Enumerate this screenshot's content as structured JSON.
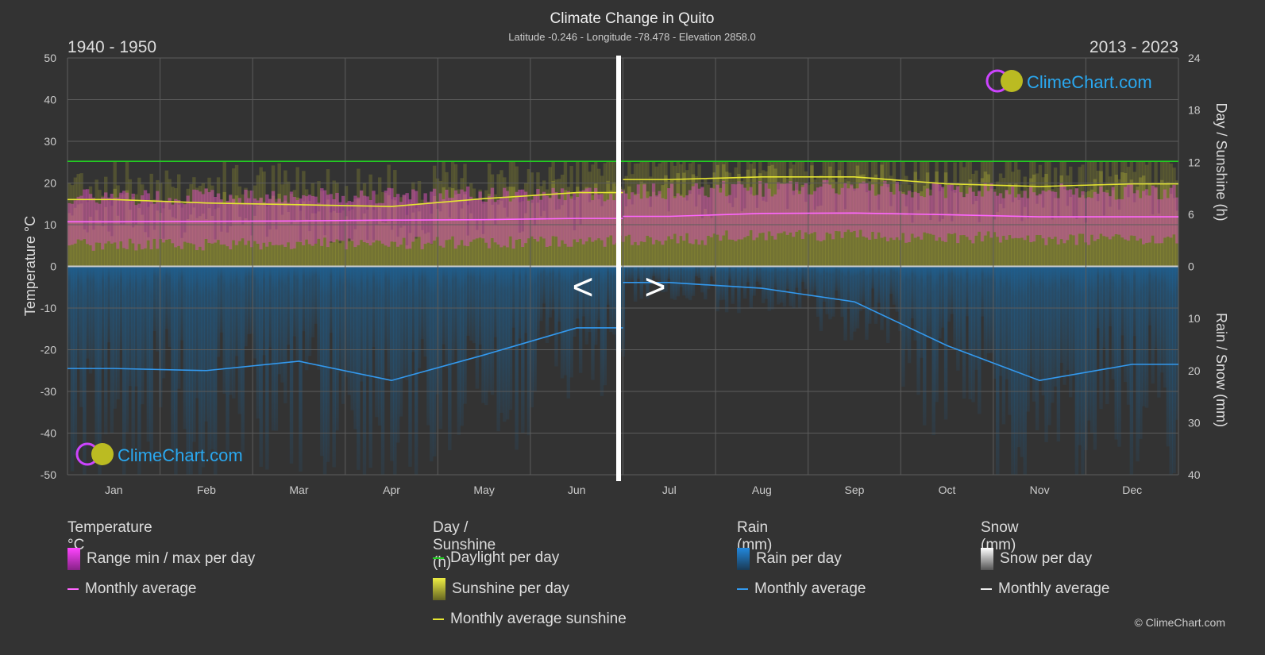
{
  "header": {
    "title": "Climate Change in Quito",
    "subtitle": "Latitude -0.246 - Longitude -78.478 - Elevation 2858.0",
    "period_left": "1940 - 1950",
    "period_right": "2013 - 2023",
    "nav_prev": "<",
    "nav_next": ">"
  },
  "chart_data": {
    "type": "line",
    "title": "Climate Change in Quito",
    "categories": [
      "Jan",
      "Feb",
      "Mar",
      "Apr",
      "May",
      "Jun",
      "Jul",
      "Aug",
      "Sep",
      "Oct",
      "Nov",
      "Dec"
    ],
    "left_axis": {
      "label": "Temperature °C",
      "range": [
        -50,
        50
      ],
      "ticks": [
        "50",
        "40",
        "30",
        "20",
        "10",
        "0",
        "-10",
        "-20",
        "-30",
        "-40",
        "-50"
      ]
    },
    "right_axis_top": {
      "label": "Day / Sunshine (h)",
      "range": [
        0,
        24
      ],
      "ticks": [
        "24",
        "18",
        "12",
        "6",
        "0"
      ]
    },
    "right_axis_bottom": {
      "label": "Rain / Snow (mm)",
      "range": [
        0,
        40
      ],
      "ticks": [
        "0",
        "10",
        "20",
        "30",
        "40"
      ]
    },
    "grid": true,
    "note": "Jan–Jun from 1940 - 1950, Jul–Dec from 2013 - 2023",
    "series": [
      {
        "name": "Monthly average",
        "group": "temperature",
        "unit": "°C",
        "color": "#ff66ff",
        "values": [
          10.7,
          10.8,
          10.9,
          11.1,
          11.2,
          11.5,
          12.0,
          12.7,
          12.8,
          12.4,
          11.9,
          11.9
        ]
      },
      {
        "name": "Daylight per day",
        "group": "sunshine",
        "unit": "h",
        "color": "#22cc22",
        "values": [
          12.1,
          12.1,
          12.1,
          12.1,
          12.1,
          12.1,
          12.1,
          12.1,
          12.1,
          12.1,
          12.1,
          12.1
        ]
      },
      {
        "name": "Monthly average sunshine",
        "group": "sunshine",
        "unit": "h",
        "color": "#e6e632",
        "values": [
          7.7,
          7.3,
          7.1,
          6.9,
          7.8,
          8.5,
          10.0,
          10.3,
          10.3,
          9.5,
          9.2,
          9.5
        ]
      },
      {
        "name": "Monthly average",
        "group": "rain",
        "unit": "mm",
        "color": "#3399ee",
        "values": [
          19.6,
          20.0,
          18.2,
          21.9,
          17.0,
          11.8,
          3.1,
          4.2,
          6.8,
          15.2,
          21.9,
          18.8
        ]
      }
    ]
  },
  "legend": {
    "temperature": {
      "title": "Temperature °C",
      "range": "Range min / max per day",
      "avg": "Monthly average"
    },
    "sunshine": {
      "title": "Day / Sunshine (h)",
      "daylight": "Daylight per day",
      "sunshine": "Sunshine per day",
      "avg": "Monthly average sunshine"
    },
    "rain": {
      "title": "Rain (mm)",
      "per_day": "Rain per day",
      "avg": "Monthly average"
    },
    "snow": {
      "title": "Snow (mm)",
      "per_day": "Snow per day",
      "avg": "Monthly average"
    }
  },
  "brand": {
    "logo_text": "ClimeChart.com",
    "copyright": "© ClimeChart.com"
  },
  "colors": {
    "background": "#333333",
    "temp_range": "#e040c0",
    "sunshine": "#9a9a30",
    "rain": "#2a7ab8",
    "daylight": "#22cc22"
  }
}
